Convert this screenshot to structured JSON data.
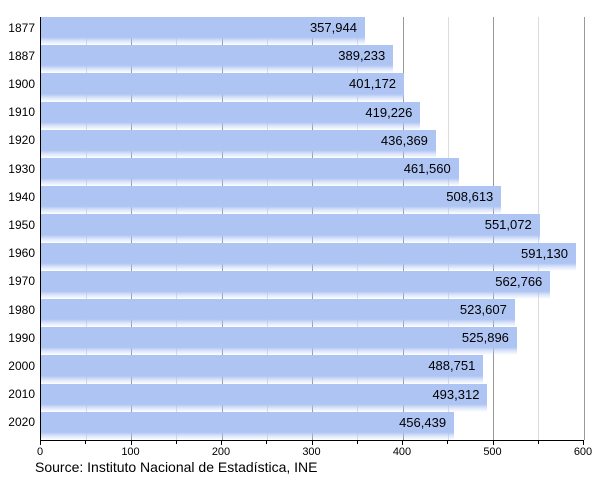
{
  "chart_data": {
    "type": "bar",
    "orientation": "horizontal",
    "title": "",
    "xlabel": "",
    "ylabel": "",
    "legend": "none",
    "grid": "vertical gridlines, major every 100, minor every 50",
    "categories": [
      "1877",
      "1887",
      "1900",
      "1910",
      "1920",
      "1930",
      "1940",
      "1950",
      "1960",
      "1970",
      "1980",
      "1990",
      "2000",
      "2010",
      "2020"
    ],
    "values": [
      357944,
      389233,
      401172,
      419226,
      436369,
      461560,
      508613,
      551072,
      591130,
      562766,
      523607,
      525896,
      488751,
      493312,
      456439
    ],
    "value_labels": [
      "357,944",
      "389,233",
      "401,172",
      "419,226",
      "436,369",
      "461,560",
      "508,613",
      "551,072",
      "591,130",
      "562,766",
      "523,607",
      "525,896",
      "488,751",
      "493,312",
      "456,439"
    ],
    "x_tick_values": [
      0,
      100,
      200,
      300,
      400,
      500,
      600
    ],
    "x_tick_labels": [
      "0",
      "100",
      "200",
      "300",
      "400",
      "500",
      "600"
    ],
    "x_minor_step": 50,
    "xlim": [
      0,
      600
    ],
    "axis_unit_scale": 1000
  },
  "footer": {
    "source_note": "Source: Instituto Nacional de Estadística, INE"
  },
  "colors": {
    "bar_fill": "#aec4f3",
    "major_gridline": "#999999",
    "minor_gridline": "#dcdcdc",
    "axis": "#000000",
    "text": "#000000",
    "background": "#ffffff"
  }
}
